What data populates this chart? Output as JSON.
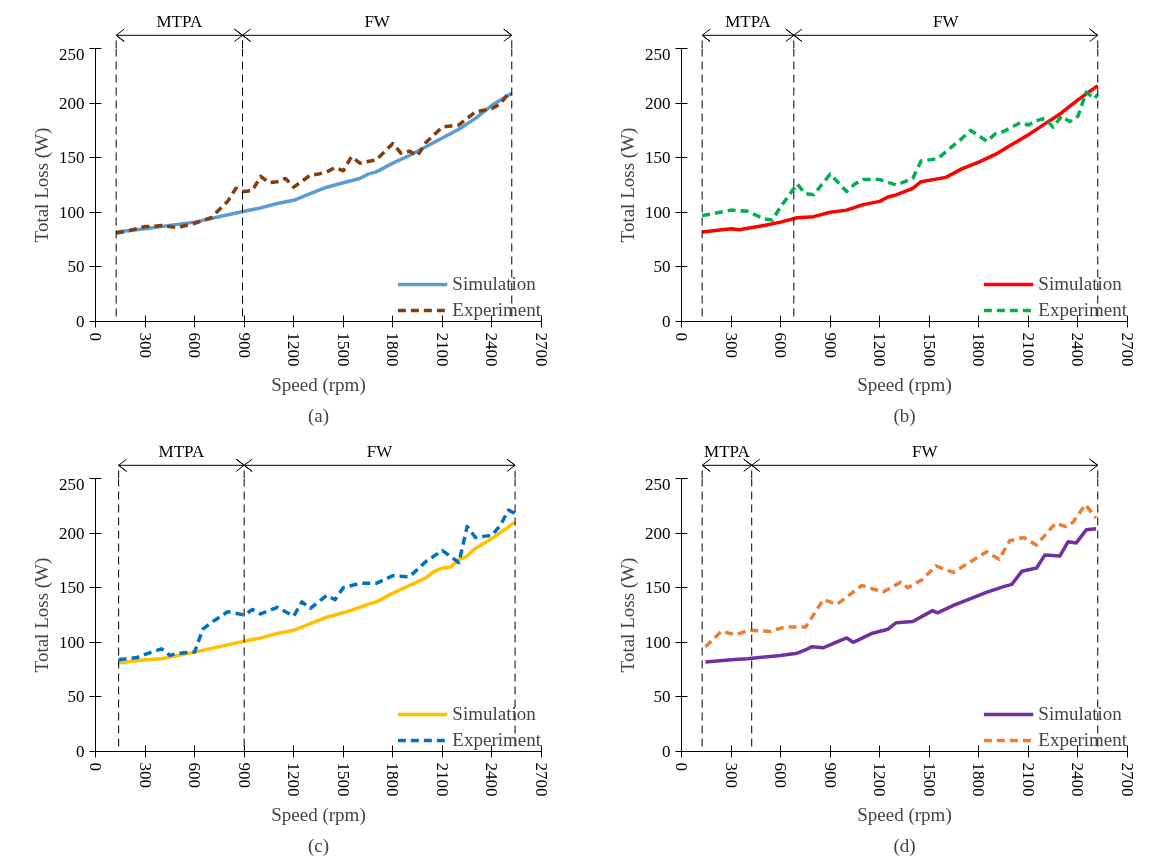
{
  "chart_data": [
    {
      "type": "line",
      "xlabel": "Speed (rpm)",
      "ylabel": "Total Loss (W)",
      "xlim": [
        0,
        2700
      ],
      "xticks": [
        0,
        300,
        600,
        900,
        1200,
        1500,
        1800,
        2100,
        2400,
        2700
      ],
      "ylim": [
        0,
        250
      ],
      "yticks": [
        0,
        50,
        100,
        150,
        200,
        250
      ],
      "grid": false,
      "legend": "bottom right",
      "annotations": [
        "MTPA",
        "FW",
        "(a)"
      ],
      "ref_lines": [
        {
          "axis": "x",
          "value": 125,
          "label": null,
          "color": "#000000",
          "line_style": "dashed"
        },
        {
          "axis": "x",
          "value": 890,
          "label": null,
          "color": "#000000",
          "line_style": "dashed"
        },
        {
          "axis": "x",
          "value": 2520,
          "label": null,
          "color": "#000000",
          "line_style": "dashed"
        }
      ],
      "series": [
        {
          "name": "Simulation",
          "color": "#5b9bd5",
          "line_style": "solid",
          "x": [
            125,
            300,
            600,
            900,
            1000,
            1100,
            1200,
            1300,
            1400,
            1500,
            1600,
            1650,
            1700,
            1800,
            1900,
            2000,
            2100,
            2200,
            2300,
            2400,
            2520
          ],
          "values": [
            82,
            85,
            91,
            101,
            104,
            108,
            111,
            117,
            123,
            127,
            131,
            135,
            137,
            145,
            152,
            160,
            168,
            176,
            186,
            198,
            209
          ]
        },
        {
          "name": "Experiment",
          "color": "#843c0c",
          "line_style": "dashed",
          "x": [
            125,
            200,
            300,
            350,
            400,
            500,
            600,
            700,
            800,
            850,
            900,
            950,
            1000,
            1050,
            1100,
            1150,
            1200,
            1300,
            1350,
            1400,
            1450,
            1500,
            1550,
            1600,
            1700,
            1800,
            1850,
            1900,
            1950,
            2000,
            2100,
            2200,
            2300,
            2400,
            2450,
            2500,
            2520
          ],
          "values": [
            81,
            83,
            87,
            87,
            88,
            86,
            90,
            95,
            110,
            122,
            119,
            120,
            133,
            127,
            128,
            131,
            123,
            134,
            135,
            137,
            141,
            138,
            151,
            145,
            148,
            163,
            154,
            156,
            152,
            164,
            178,
            180,
            192,
            195,
            199,
            209,
            208
          ]
        }
      ]
    },
    {
      "type": "line",
      "xlabel": "Speed (rpm)",
      "ylabel": "Total Loss (W)",
      "xlim": [
        0,
        2700
      ],
      "xticks": [
        0,
        300,
        600,
        900,
        1200,
        1500,
        1800,
        2100,
        2400,
        2700
      ],
      "ylim": [
        0,
        250
      ],
      "yticks": [
        0,
        50,
        100,
        150,
        200,
        250
      ],
      "grid": false,
      "legend": "bottom right",
      "annotations": [
        "MTPA",
        "FW",
        "(b)"
      ],
      "ref_lines": [
        {
          "axis": "x",
          "value": 125,
          "label": null,
          "color": "#000000",
          "line_style": "dashed"
        },
        {
          "axis": "x",
          "value": 680,
          "label": null,
          "color": "#000000",
          "line_style": "dashed"
        },
        {
          "axis": "x",
          "value": 2520,
          "label": null,
          "color": "#000000",
          "line_style": "dashed"
        }
      ],
      "series": [
        {
          "name": "Simulation",
          "color": "#ff0000",
          "line_style": "solid",
          "x": [
            125,
            300,
            350,
            500,
            600,
            700,
            800,
            900,
            1000,
            1100,
            1200,
            1250,
            1300,
            1400,
            1450,
            1600,
            1700,
            1800,
            1900,
            2000,
            2100,
            2200,
            2300,
            2400,
            2520
          ],
          "values": [
            82,
            85,
            84,
            88,
            91,
            95,
            96,
            100,
            102,
            107,
            110,
            114,
            116,
            122,
            128,
            132,
            140,
            146,
            153,
            162,
            171,
            181,
            191,
            203,
            216
          ]
        },
        {
          "name": "Experiment",
          "color": "#00b050",
          "line_style": "dashed",
          "x": [
            125,
            200,
            300,
            400,
            500,
            550,
            600,
            700,
            750,
            800,
            900,
            1000,
            1050,
            1100,
            1200,
            1300,
            1400,
            1450,
            1550,
            1700,
            1750,
            1850,
            1900,
            1950,
            2050,
            2100,
            2150,
            2200,
            2250,
            2300,
            2350,
            2400,
            2450,
            2500,
            2520
          ],
          "values": [
            97,
            99,
            102,
            101,
            94,
            93,
            105,
            126,
            117,
            116,
            135,
            119,
            126,
            130,
            130,
            125,
            131,
            147,
            149,
            168,
            175,
            165,
            172,
            174,
            182,
            180,
            184,
            186,
            178,
            188,
            183,
            188,
            210,
            204,
            208
          ]
        }
      ]
    },
    {
      "type": "line",
      "xlabel": "Speed (rpm)",
      "ylabel": "Total Loss (W)",
      "xlim": [
        0,
        2700
      ],
      "xticks": [
        0,
        300,
        600,
        900,
        1200,
        1500,
        1800,
        2100,
        2400,
        2700
      ],
      "ylim": [
        0,
        250
      ],
      "yticks": [
        0,
        50,
        100,
        150,
        200,
        250
      ],
      "grid": false,
      "legend": "bottom right",
      "annotations": [
        "MTPA",
        "FW",
        "(c)"
      ],
      "ref_lines": [
        {
          "axis": "x",
          "value": 140,
          "label": null,
          "color": "#000000",
          "line_style": "dashed"
        },
        {
          "axis": "x",
          "value": 900,
          "label": null,
          "color": "#000000",
          "line_style": "dashed"
        },
        {
          "axis": "x",
          "value": 2540,
          "label": null,
          "color": "#000000",
          "line_style": "dashed"
        }
      ],
      "series": [
        {
          "name": "Simulation",
          "color": "#ffc000",
          "line_style": "solid",
          "x": [
            140,
            300,
            400,
            600,
            900,
            1000,
            1100,
            1200,
            1300,
            1400,
            1500,
            1600,
            1650,
            1700,
            1800,
            1900,
            2000,
            2050,
            2100,
            2150,
            2200,
            2250,
            2300,
            2400,
            2540
          ],
          "values": [
            81,
            84,
            85,
            91,
            101,
            104,
            108,
            111,
            117,
            123,
            127,
            132,
            135,
            137,
            145,
            152,
            159,
            165,
            168,
            169,
            176,
            179,
            186,
            195,
            210
          ]
        },
        {
          "name": "Experiment",
          "color": "#0070c0",
          "line_style": "dashed",
          "x": [
            140,
            250,
            300,
            400,
            450,
            500,
            600,
            650,
            700,
            800,
            900,
            950,
            1000,
            1100,
            1200,
            1250,
            1300,
            1400,
            1450,
            1500,
            1600,
            1700,
            1800,
            1900,
            2000,
            2100,
            2200,
            2250,
            2300,
            2350,
            2400,
            2450,
            2500,
            2540
          ],
          "values": [
            84,
            86,
            89,
            94,
            88,
            90,
            91,
            112,
            118,
            128,
            125,
            130,
            126,
            132,
            124,
            137,
            131,
            143,
            139,
            150,
            154,
            154,
            161,
            160,
            174,
            184,
            173,
            206,
            196,
            197,
            198,
            207,
            221,
            218
          ]
        }
      ]
    },
    {
      "type": "line",
      "xlabel": "Speed (rpm)",
      "ylabel": "Total Loss (W)",
      "xlim": [
        0,
        2700
      ],
      "xticks": [
        0,
        300,
        600,
        900,
        1200,
        1500,
        1800,
        2100,
        2400,
        2700
      ],
      "ylim": [
        0,
        250
      ],
      "yticks": [
        0,
        50,
        100,
        150,
        200,
        250
      ],
      "grid": false,
      "legend": "bottom right",
      "annotations": [
        "MTPA",
        "FW",
        "(d)"
      ],
      "ref_lines": [
        {
          "axis": "x",
          "value": 125,
          "label": null,
          "color": "#000000",
          "line_style": "dashed"
        },
        {
          "axis": "x",
          "value": 425,
          "label": null,
          "color": "#000000",
          "line_style": "dashed"
        },
        {
          "axis": "x",
          "value": 2520,
          "label": null,
          "color": "#000000",
          "line_style": "dashed"
        }
      ],
      "series": [
        {
          "name": "Simulation",
          "color": "#7030a0",
          "line_style": "solid",
          "x": [
            145,
            300,
            400,
            600,
            700,
            750,
            790,
            860,
            920,
            1000,
            1040,
            1150,
            1250,
            1300,
            1400,
            1520,
            1550,
            1650,
            1750,
            1850,
            1950,
            2000,
            2060,
            2150,
            2200,
            2290,
            2340,
            2390,
            2450,
            2510
          ],
          "values": [
            82,
            84,
            85,
            88,
            90,
            93,
            96,
            95,
            99,
            104,
            100,
            108,
            112,
            118,
            119,
            129,
            127,
            134,
            140,
            146,
            151,
            153,
            165,
            168,
            180,
            179,
            192,
            191,
            203,
            204
          ]
        },
        {
          "name": "Experiment",
          "color": "#ed7d31",
          "line_style": "dashed",
          "x": [
            145,
            241,
            326,
            411,
            539,
            624,
            752,
            858,
            943,
            1092,
            1220,
            1327,
            1369,
            1454,
            1540,
            1646,
            1774,
            1848,
            1923,
            1987,
            2072,
            2147,
            2264,
            2328,
            2370,
            2445,
            2509
          ],
          "values": [
            96,
            110,
            107,
            111,
            110,
            114,
            114,
            139,
            135,
            152,
            146,
            155,
            150,
            157,
            170,
            164,
            176,
            183,
            176,
            193,
            196,
            189,
            209,
            206,
            210,
            226,
            214
          ]
        }
      ]
    }
  ]
}
